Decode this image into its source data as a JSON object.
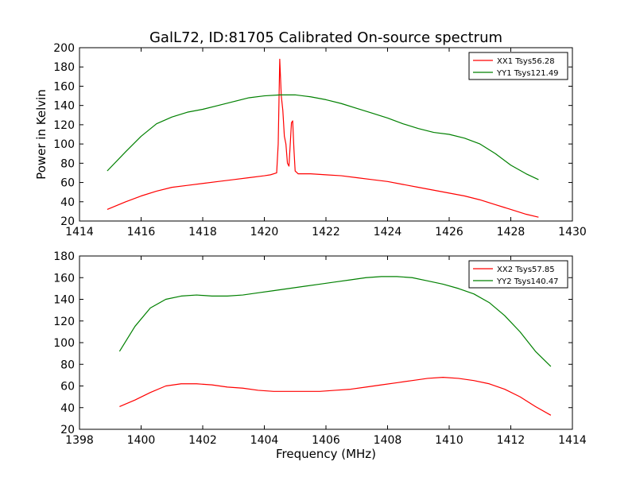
{
  "page": {
    "title": "GalL72, ID:81705 Calibrated On-source spectrum"
  },
  "chart_data": [
    {
      "type": "line",
      "xlabel": "",
      "ylabel": "Power in Kelvin",
      "xlim": [
        1414,
        1430
      ],
      "ylim": [
        20,
        200
      ],
      "xticks": [
        "1414",
        "1416",
        "1418",
        "1420",
        "1422",
        "1424",
        "1426",
        "1428",
        "1430"
      ],
      "yticks": [
        "20",
        "40",
        "60",
        "80",
        "100",
        "120",
        "140",
        "160",
        "180",
        "200"
      ],
      "legend_position": "top-right",
      "grid": false,
      "series": [
        {
          "name": "XX1 Tsys56.28",
          "color": "#ff0000",
          "x": [
            1414.9,
            1415.5,
            1416,
            1416.5,
            1417,
            1417.5,
            1418,
            1418.5,
            1419,
            1419.5,
            1420,
            1420.2,
            1420.4,
            1420.45,
            1420.5,
            1420.55,
            1420.6,
            1420.65,
            1420.7,
            1420.75,
            1420.8,
            1420.85,
            1420.88,
            1420.92,
            1420.96,
            1421,
            1421.1,
            1421.5,
            1422,
            1422.5,
            1423,
            1423.5,
            1424,
            1424.5,
            1425,
            1425.5,
            1426,
            1426.5,
            1427,
            1427.5,
            1428,
            1428.5,
            1428.9
          ],
          "y": [
            32,
            40,
            46,
            51,
            55,
            57,
            59,
            61,
            63,
            65,
            67,
            68,
            70,
            100,
            188,
            150,
            135,
            108,
            100,
            80,
            77,
            105,
            122,
            124,
            95,
            72,
            69,
            69,
            68,
            67,
            65,
            63,
            61,
            58,
            55,
            52,
            49,
            46,
            42,
            37,
            32,
            27,
            24
          ]
        },
        {
          "name": "YY1 Tsys121.49",
          "color": "#008000",
          "x": [
            1414.9,
            1415.5,
            1416,
            1416.5,
            1417,
            1417.5,
            1418,
            1418.5,
            1419,
            1419.5,
            1420,
            1420.5,
            1421,
            1421.5,
            1422,
            1422.5,
            1423,
            1423.5,
            1424,
            1424.5,
            1425,
            1425.5,
            1426,
            1426.5,
            1427,
            1427.5,
            1428,
            1428.5,
            1428.9
          ],
          "y": [
            72,
            92,
            108,
            121,
            128,
            133,
            136,
            140,
            144,
            148,
            150,
            151,
            151,
            149,
            146,
            142,
            137,
            132,
            127,
            121,
            116,
            112,
            110,
            106,
            100,
            90,
            78,
            69,
            63
          ]
        }
      ]
    },
    {
      "type": "line",
      "xlabel": "Frequency (MHz)",
      "ylabel": "",
      "xlim": [
        1398,
        1414
      ],
      "ylim": [
        20,
        180
      ],
      "xticks": [
        "1398",
        "1400",
        "1402",
        "1404",
        "1406",
        "1408",
        "1410",
        "1412",
        "1414"
      ],
      "yticks": [
        "20",
        "40",
        "60",
        "80",
        "100",
        "120",
        "140",
        "160",
        "180"
      ],
      "legend_position": "top-right",
      "grid": false,
      "series": [
        {
          "name": "XX2 Tsys57.85",
          "color": "#ff0000",
          "x": [
            1399.3,
            1399.8,
            1400.3,
            1400.8,
            1401.3,
            1401.8,
            1402.3,
            1402.8,
            1403.3,
            1403.8,
            1404.3,
            1404.8,
            1405.3,
            1405.8,
            1406.3,
            1406.8,
            1407.3,
            1407.8,
            1408.3,
            1408.8,
            1409.3,
            1409.8,
            1410.3,
            1410.8,
            1411.3,
            1411.8,
            1412.3,
            1412.8,
            1413.3
          ],
          "y": [
            41,
            47,
            54,
            60,
            62,
            62,
            61,
            59,
            58,
            56,
            55,
            55,
            55,
            55,
            56,
            57,
            59,
            61,
            63,
            65,
            67,
            68,
            67,
            65,
            62,
            57,
            50,
            41,
            33
          ]
        },
        {
          "name": "YY2 Tsys140.47",
          "color": "#008000",
          "x": [
            1399.3,
            1399.8,
            1400.3,
            1400.8,
            1401.3,
            1401.8,
            1402.3,
            1402.8,
            1403.3,
            1403.8,
            1404.3,
            1404.8,
            1405.3,
            1405.8,
            1406.3,
            1406.8,
            1407.3,
            1407.8,
            1408.3,
            1408.8,
            1409.3,
            1409.8,
            1410.3,
            1410.8,
            1411.3,
            1411.8,
            1412.3,
            1412.8,
            1413.3
          ],
          "y": [
            92,
            115,
            132,
            140,
            143,
            144,
            143,
            143,
            144,
            146,
            148,
            150,
            152,
            154,
            156,
            158,
            160,
            161,
            161,
            160,
            157,
            154,
            150,
            145,
            137,
            125,
            110,
            92,
            78
          ]
        }
      ]
    }
  ]
}
